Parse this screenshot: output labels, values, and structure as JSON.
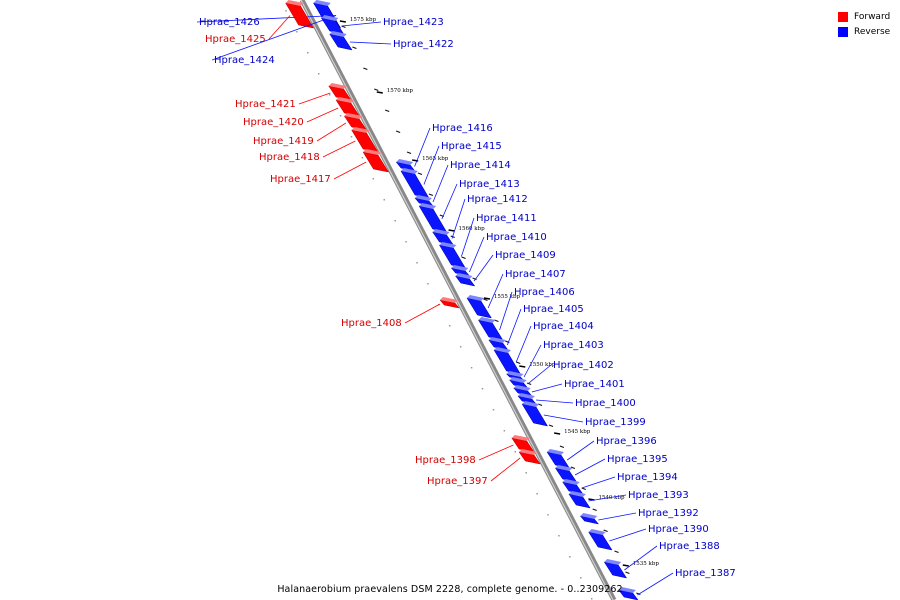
{
  "legend": {
    "forward": {
      "label": "Forward",
      "color": "#ff0000"
    },
    "reverse": {
      "label": "Reverse",
      "color": "#0000ff"
    }
  },
  "footer": {
    "caption": "Halanaerobium praevalens DSM 2228, complete genome. - 0..2309262"
  },
  "scale_labels": [
    "1575 kbp",
    "1570 kbp",
    "1565 kbp",
    "1560 kbp",
    "1555 kbp",
    "1550 kbp",
    "1545 kbp",
    "1540 kbp",
    "1535 kbp"
  ],
  "genes": [
    {
      "name": "Hprae_1426",
      "strand": "reverse"
    },
    {
      "name": "Hprae_1425",
      "strand": "forward"
    },
    {
      "name": "Hprae_1424",
      "strand": "reverse"
    },
    {
      "name": "Hprae_1423",
      "strand": "reverse"
    },
    {
      "name": "Hprae_1422",
      "strand": "reverse"
    },
    {
      "name": "Hprae_1421",
      "strand": "forward"
    },
    {
      "name": "Hprae_1420",
      "strand": "forward"
    },
    {
      "name": "Hprae_1419",
      "strand": "forward"
    },
    {
      "name": "Hprae_1418",
      "strand": "forward"
    },
    {
      "name": "Hprae_1417",
      "strand": "forward"
    },
    {
      "name": "Hprae_1416",
      "strand": "reverse"
    },
    {
      "name": "Hprae_1415",
      "strand": "reverse"
    },
    {
      "name": "Hprae_1414",
      "strand": "reverse"
    },
    {
      "name": "Hprae_1413",
      "strand": "reverse"
    },
    {
      "name": "Hprae_1412",
      "strand": "reverse"
    },
    {
      "name": "Hprae_1411",
      "strand": "reverse"
    },
    {
      "name": "Hprae_1410",
      "strand": "reverse"
    },
    {
      "name": "Hprae_1409",
      "strand": "reverse"
    },
    {
      "name": "Hprae_1408",
      "strand": "forward"
    },
    {
      "name": "Hprae_1407",
      "strand": "reverse"
    },
    {
      "name": "Hprae_1406",
      "strand": "reverse"
    },
    {
      "name": "Hprae_1405",
      "strand": "reverse"
    },
    {
      "name": "Hprae_1404",
      "strand": "reverse"
    },
    {
      "name": "Hprae_1403",
      "strand": "reverse"
    },
    {
      "name": "Hprae_1402",
      "strand": "reverse"
    },
    {
      "name": "Hprae_1401",
      "strand": "reverse"
    },
    {
      "name": "Hprae_1400",
      "strand": "reverse"
    },
    {
      "name": "Hprae_1399",
      "strand": "reverse"
    },
    {
      "name": "Hprae_1398",
      "strand": "forward"
    },
    {
      "name": "Hprae_1397",
      "strand": "forward"
    },
    {
      "name": "Hprae_1396",
      "strand": "reverse"
    },
    {
      "name": "Hprae_1395",
      "strand": "reverse"
    },
    {
      "name": "Hprae_1394",
      "strand": "reverse"
    },
    {
      "name": "Hprae_1393",
      "strand": "reverse"
    },
    {
      "name": "Hprae_1392",
      "strand": "reverse"
    },
    {
      "name": "Hprae_1390",
      "strand": "reverse"
    },
    {
      "name": "Hprae_1388",
      "strand": "reverse"
    },
    {
      "name": "Hprae_1387",
      "strand": "reverse"
    }
  ]
}
